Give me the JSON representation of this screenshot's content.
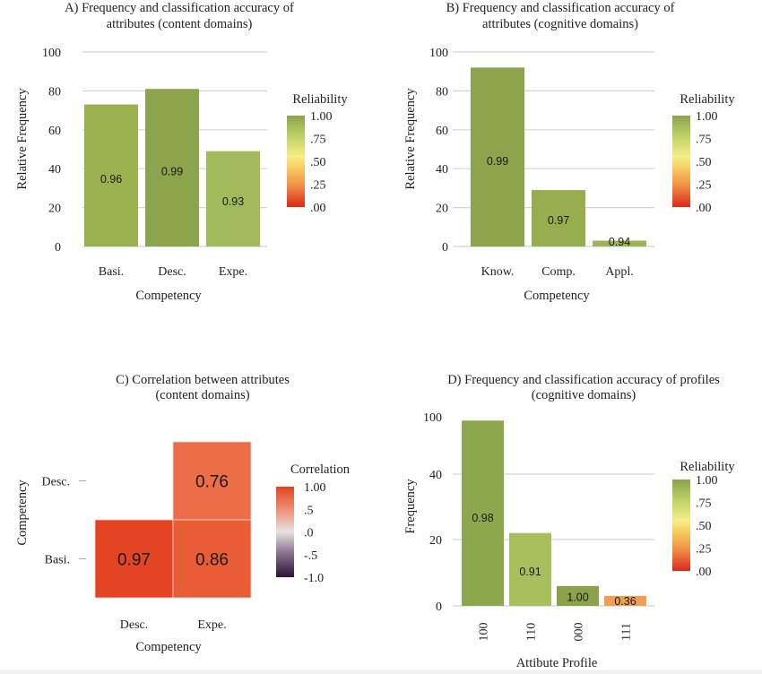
{
  "chart_data": [
    {
      "id": "A",
      "type": "bar",
      "title": [
        "A) Frequency and classification accuracy of",
        "attributes (content domains)"
      ],
      "xlabel": "Competency",
      "ylabel": "Relative Frequency",
      "categories": [
        "Basi.",
        "Desc.",
        "Expe."
      ],
      "values": [
        73,
        81,
        49
      ],
      "labels": [
        "0.96",
        "0.99",
        "0.93"
      ],
      "reliability": [
        0.96,
        0.99,
        0.93
      ],
      "colors": [
        "#9bb04e",
        "#8ca44b",
        "#a1ba5a"
      ],
      "yticks": [
        0,
        20,
        40,
        60,
        80,
        100
      ],
      "ylim": [
        0,
        100
      ],
      "grid": true,
      "legend": {
        "title": "Reliability",
        "ticks": [
          "1.00",
          ".75",
          ".50",
          ".25",
          ".00"
        ],
        "placement": "right"
      }
    },
    {
      "id": "B",
      "type": "bar",
      "title": [
        "B) Frequency and classification accuracy of",
        "attributes (cognitive domains)"
      ],
      "xlabel": "Competency",
      "ylabel": "Relative Frequency",
      "categories": [
        "Know.",
        "Comp.",
        "Appl."
      ],
      "values": [
        92,
        29,
        3
      ],
      "labels": [
        "0.99",
        "0.97",
        "0.94"
      ],
      "reliability": [
        0.99,
        0.97,
        0.94
      ],
      "colors": [
        "#8ca44b",
        "#97ad4e",
        "#9db356"
      ],
      "yticks": [
        0,
        20,
        40,
        60,
        80,
        100
      ],
      "ylim": [
        0,
        100
      ],
      "grid": true,
      "legend": {
        "title": "Reliability",
        "ticks": [
          "1.00",
          ".75",
          ".50",
          ".25",
          ".00"
        ],
        "placement": "right"
      }
    },
    {
      "id": "C",
      "type": "heatmap",
      "title": [
        "C) Correlation between attributes",
        "(content domains)"
      ],
      "xlabel": "Competency",
      "ylabel": "Competency",
      "x_categories": [
        "Desc.",
        "Expe."
      ],
      "y_categories": [
        "Desc.",
        "Basi."
      ],
      "cells": [
        {
          "x": "Expe.",
          "y": "Desc.",
          "value": 0.76,
          "label": "0.76",
          "color": "#ec6e48"
        },
        {
          "x": "Desc.",
          "y": "Basi.",
          "value": 0.97,
          "label": "0.97",
          "color": "#e34524"
        },
        {
          "x": "Expe.",
          "y": "Basi.",
          "value": 0.86,
          "label": "0.86",
          "color": "#e85d35"
        }
      ],
      "legend": {
        "title": "Correlation",
        "ticks": [
          "1.00",
          ".5",
          ".0",
          "-.5",
          "-1.0"
        ],
        "placement": "right"
      }
    },
    {
      "id": "D",
      "type": "bar",
      "title": [
        "D) Frequency and classification accuracy of profiles",
        "(cognitive domains)"
      ],
      "xlabel": "Attibute Profile",
      "ylabel": "Frequency",
      "categories": [
        "100",
        "110",
        "000",
        "111"
      ],
      "values": [
        96,
        22,
        6,
        3
      ],
      "labels": [
        "0.98",
        "0.91",
        "1.00",
        "0.36"
      ],
      "reliability": [
        0.98,
        0.91,
        1.0,
        0.36
      ],
      "colors": [
        "#8da84c",
        "#a8bf5e",
        "#89a24b",
        "#f0a050"
      ],
      "yticks": [
        0,
        20,
        40,
        100
      ],
      "ylim": [
        0,
        100
      ],
      "axis_break": "compressed between 40 and 100",
      "grid": true,
      "legend": {
        "title": "Reliability",
        "ticks": [
          "1.00",
          ".75",
          ".50",
          ".25",
          ".00"
        ],
        "placement": "right"
      }
    }
  ]
}
